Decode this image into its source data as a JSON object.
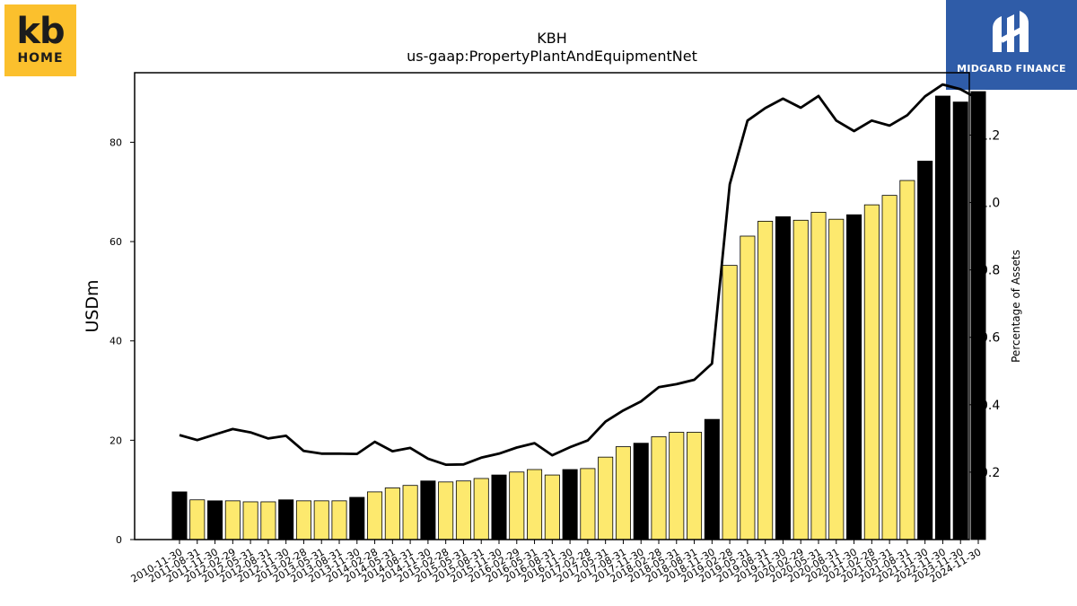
{
  "logos": {
    "left": {
      "line1": "kb",
      "line2": "HOME"
    },
    "right": {
      "brand": "MIDGARD FINANCE"
    }
  },
  "chart_data": {
    "type": "bar",
    "title": "KBH",
    "subtitle": "us-gaap:PropertyPlantAndEquipmentNet",
    "ylabel": "USDm",
    "ylabel_right": "Percentage of Assets",
    "ylim": [
      0,
      94
    ],
    "ylim_right": [
      0,
      1.385
    ],
    "yticks": [
      0,
      20,
      40,
      60,
      80
    ],
    "yticks_right": [
      0.2,
      0.4,
      0.6,
      0.8,
      1.0,
      1.2
    ],
    "yticks_right_labels": [
      "0.2",
      "0.4",
      "0.6",
      "0.8",
      "1.0",
      "1.2"
    ],
    "grid": false,
    "colors": {
      "annual": "#000000",
      "quarterly": "#fde96e",
      "line": "#000000"
    },
    "categories": [
      "2010-11-30",
      "2011-08-31",
      "2011-11-30",
      "2012-02-29",
      "2012-05-31",
      "2012-08-31",
      "2012-11-30",
      "2013-02-28",
      "2013-05-31",
      "2013-08-31",
      "2013-11-30",
      "2014-02-28",
      "2014-05-31",
      "2014-08-31",
      "2014-11-30",
      "2015-02-28",
      "2015-05-31",
      "2015-08-31",
      "2015-11-30",
      "2016-02-29",
      "2016-05-31",
      "2016-08-31",
      "2016-11-30",
      "2017-02-28",
      "2017-05-31",
      "2017-08-31",
      "2017-11-30",
      "2018-02-28",
      "2018-05-31",
      "2018-08-31",
      "2018-11-30",
      "2019-02-28",
      "2019-05-31",
      "2019-08-31",
      "2019-11-30",
      "2020-02-29",
      "2020-05-31",
      "2020-08-31",
      "2020-11-30",
      "2021-02-28",
      "2021-05-31",
      "2021-08-31",
      "2021-11-30",
      "2022-11-30",
      "2023-11-30",
      "2024-11-30"
    ],
    "series": [
      {
        "kind": "bar",
        "values": [
          9.6,
          8.0,
          7.8,
          7.8,
          7.6,
          7.6,
          8.0,
          7.8,
          7.8,
          7.8,
          8.5,
          9.6,
          10.4,
          10.9,
          11.8,
          11.6,
          11.8,
          12.3,
          13.0,
          13.6,
          14.1,
          13.0,
          14.1,
          14.3,
          16.6,
          18.7,
          19.4,
          20.7,
          21.6,
          21.6,
          24.2,
          55.2,
          61.1,
          64.1,
          65.0,
          64.3,
          65.9,
          64.5,
          65.4,
          67.4,
          69.3,
          72.3,
          76.2,
          89.3,
          88.1,
          90.2
        ],
        "annual_flags": [
          1,
          0,
          1,
          0,
          0,
          0,
          1,
          0,
          0,
          0,
          1,
          0,
          0,
          0,
          1,
          0,
          0,
          0,
          1,
          0,
          0,
          0,
          1,
          0,
          0,
          0,
          1,
          0,
          0,
          0,
          1,
          0,
          0,
          0,
          1,
          0,
          0,
          0,
          1,
          0,
          0,
          0,
          1,
          1,
          1,
          1
        ]
      },
      {
        "kind": "line",
        "axis": "right",
        "values": [
          0.31,
          0.295,
          0.312,
          0.328,
          0.318,
          0.3,
          0.308,
          0.263,
          0.255,
          0.255,
          0.254,
          0.29,
          0.262,
          0.272,
          0.24,
          0.222,
          0.223,
          0.243,
          0.255,
          0.273,
          0.286,
          0.25,
          0.274,
          0.294,
          0.35,
          0.383,
          0.41,
          0.452,
          0.461,
          0.474,
          0.522,
          1.054,
          1.243,
          1.28,
          1.308,
          1.281,
          1.316,
          1.243,
          1.212,
          1.243,
          1.228,
          1.259,
          1.315,
          1.35,
          1.336,
          1.307
        ]
      }
    ]
  }
}
